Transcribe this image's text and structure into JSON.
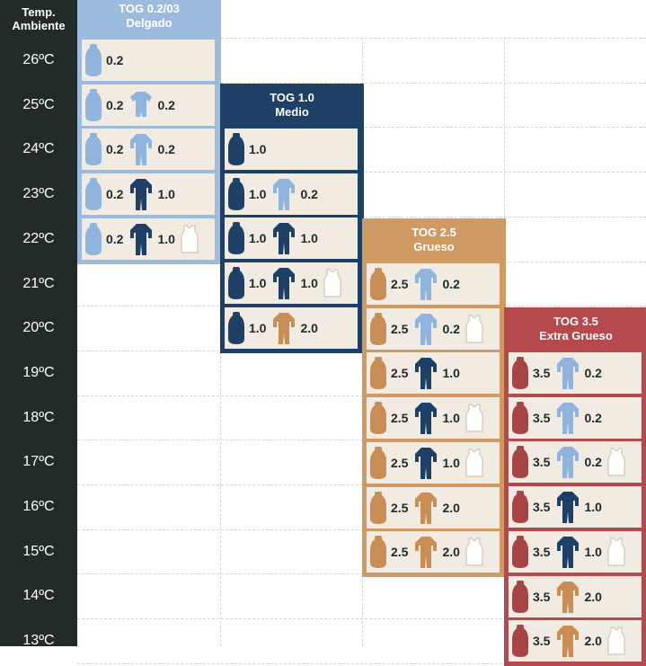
{
  "header": {
    "temp_line1": "Temp.",
    "temp_line2": "Ambiente"
  },
  "temperatures": [
    "26ºC",
    "25ºC",
    "24ºC",
    "23ºC",
    "22ºC",
    "21ºC",
    "20ºC",
    "19ºC",
    "18ºC",
    "17ºC",
    "16ºC",
    "15ºC",
    "14ºC",
    "13ºC"
  ],
  "colors": {
    "sidebar": "#232b2a",
    "light_blue": "#8fb4dd",
    "navy": "#1e3f66",
    "tan": "#c98e56",
    "red": "#a64446",
    "vest": "#ffffff",
    "cell_bg": "#f1ebe1"
  },
  "categories": [
    {
      "title": "TOG 0.2/03",
      "subtitle": "Delgado",
      "color": "#9dbcdd",
      "rows": [
        {
          "temp": "26ºC",
          "items": [
            {
              "icon": "sleeping-bag-icon",
              "color": "light_blue",
              "label": "0.2"
            }
          ]
        },
        {
          "temp": "25ºC",
          "items": [
            {
              "icon": "sleeping-bag-icon",
              "color": "light_blue",
              "label": "0.2"
            },
            {
              "icon": "romper-short-icon",
              "color": "light_blue",
              "label": "0.2"
            }
          ]
        },
        {
          "temp": "24ºC",
          "items": [
            {
              "icon": "sleeping-bag-icon",
              "color": "light_blue",
              "label": "0.2"
            },
            {
              "icon": "onesie-icon",
              "color": "light_blue",
              "label": "0.2"
            }
          ]
        },
        {
          "temp": "23ºC",
          "items": [
            {
              "icon": "sleeping-bag-icon",
              "color": "light_blue",
              "label": "0.2"
            },
            {
              "icon": "onesie-icon",
              "color": "navy",
              "label": "1.0"
            }
          ]
        },
        {
          "temp": "22ºC",
          "items": [
            {
              "icon": "sleeping-bag-icon",
              "color": "light_blue",
              "label": "0.2"
            },
            {
              "icon": "onesie-icon",
              "color": "navy",
              "label": "1.0"
            },
            {
              "icon": "vest-icon",
              "color": "vest",
              "label": ""
            }
          ]
        }
      ]
    },
    {
      "title": "TOG 1.0",
      "subtitle": "Medio",
      "color": "#1e3f66",
      "rows": [
        {
          "temp": "24ºC",
          "items": [
            {
              "icon": "sleeping-bag-icon",
              "color": "navy",
              "label": "1.0"
            }
          ]
        },
        {
          "temp": "23ºC",
          "items": [
            {
              "icon": "sleeping-bag-icon",
              "color": "navy",
              "label": "1.0"
            },
            {
              "icon": "onesie-icon",
              "color": "light_blue",
              "label": "0.2"
            }
          ]
        },
        {
          "temp": "22ºC",
          "items": [
            {
              "icon": "sleeping-bag-icon",
              "color": "navy",
              "label": "1.0"
            },
            {
              "icon": "onesie-icon",
              "color": "navy",
              "label": "1.0"
            }
          ]
        },
        {
          "temp": "21ºC",
          "items": [
            {
              "icon": "sleeping-bag-icon",
              "color": "navy",
              "label": "1.0"
            },
            {
              "icon": "onesie-icon",
              "color": "navy",
              "label": "1.0"
            },
            {
              "icon": "vest-icon",
              "color": "vest",
              "label": ""
            }
          ]
        },
        {
          "temp": "20ºC",
          "items": [
            {
              "icon": "sleeping-bag-icon",
              "color": "navy",
              "label": "1.0"
            },
            {
              "icon": "onesie-icon",
              "color": "tan",
              "label": "2.0"
            }
          ]
        }
      ]
    },
    {
      "title": "TOG 2.5",
      "subtitle": "Grueso",
      "color": "#d09a63",
      "rows": [
        {
          "temp": "21ºC",
          "items": [
            {
              "icon": "sleeping-bag-icon",
              "color": "tan",
              "label": "2.5"
            },
            {
              "icon": "onesie-icon",
              "color": "light_blue",
              "label": "0.2"
            }
          ]
        },
        {
          "temp": "20ºC",
          "items": [
            {
              "icon": "sleeping-bag-icon",
              "color": "tan",
              "label": "2.5"
            },
            {
              "icon": "onesie-icon",
              "color": "light_blue",
              "label": "0.2"
            },
            {
              "icon": "vest-icon",
              "color": "vest",
              "label": ""
            }
          ]
        },
        {
          "temp": "19ºC",
          "items": [
            {
              "icon": "sleeping-bag-icon",
              "color": "tan",
              "label": "2.5"
            },
            {
              "icon": "onesie-icon",
              "color": "navy",
              "label": "1.0"
            }
          ]
        },
        {
          "temp": "18ºC",
          "items": [
            {
              "icon": "sleeping-bag-icon",
              "color": "tan",
              "label": "2.5"
            },
            {
              "icon": "onesie-icon",
              "color": "navy",
              "label": "1.0"
            },
            {
              "icon": "vest-icon",
              "color": "vest",
              "label": ""
            }
          ]
        },
        {
          "temp": "17ºC",
          "items": [
            {
              "icon": "sleeping-bag-icon",
              "color": "tan",
              "label": "2.5"
            },
            {
              "icon": "onesie-icon",
              "color": "navy",
              "label": "1.0"
            },
            {
              "icon": "vest-icon",
              "color": "vest",
              "label": ""
            }
          ]
        },
        {
          "temp": "16ºC",
          "items": [
            {
              "icon": "sleeping-bag-icon",
              "color": "tan",
              "label": "2.5"
            },
            {
              "icon": "onesie-icon",
              "color": "tan",
              "label": "2.0"
            }
          ]
        },
        {
          "temp": "15ºC",
          "items": [
            {
              "icon": "sleeping-bag-icon",
              "color": "tan",
              "label": "2.5"
            },
            {
              "icon": "onesie-icon",
              "color": "tan",
              "label": "2.0"
            },
            {
              "icon": "vest-icon",
              "color": "vest",
              "label": ""
            }
          ]
        }
      ]
    },
    {
      "title": "TOG 3.5",
      "subtitle": "Extra Grueso",
      "color": "#b6494d",
      "rows": [
        {
          "temp": "19ºC",
          "items": [
            {
              "icon": "sleeping-bag-icon",
              "color": "red",
              "label": "3.5"
            },
            {
              "icon": "onesie-icon",
              "color": "light_blue",
              "label": "0.2"
            }
          ]
        },
        {
          "temp": "18ºC",
          "items": [
            {
              "icon": "sleeping-bag-icon",
              "color": "red",
              "label": "3.5"
            },
            {
              "icon": "onesie-icon",
              "color": "light_blue",
              "label": "0.2"
            }
          ]
        },
        {
          "temp": "17ºC",
          "items": [
            {
              "icon": "sleeping-bag-icon",
              "color": "red",
              "label": "3.5"
            },
            {
              "icon": "onesie-icon",
              "color": "light_blue",
              "label": "0.2"
            },
            {
              "icon": "vest-icon",
              "color": "vest",
              "label": ""
            }
          ]
        },
        {
          "temp": "16ºC",
          "items": [
            {
              "icon": "sleeping-bag-icon",
              "color": "red",
              "label": "3.5"
            },
            {
              "icon": "onesie-icon",
              "color": "navy",
              "label": "1.0"
            }
          ]
        },
        {
          "temp": "15ºC",
          "items": [
            {
              "icon": "sleeping-bag-icon",
              "color": "red",
              "label": "3.5"
            },
            {
              "icon": "onesie-icon",
              "color": "navy",
              "label": "1.0"
            },
            {
              "icon": "vest-icon",
              "color": "vest",
              "label": ""
            }
          ]
        },
        {
          "temp": "14ºC",
          "items": [
            {
              "icon": "sleeping-bag-icon",
              "color": "red",
              "label": "3.5"
            },
            {
              "icon": "onesie-icon",
              "color": "tan",
              "label": "2.0"
            }
          ]
        },
        {
          "temp": "13ºC",
          "items": [
            {
              "icon": "sleeping-bag-icon",
              "color": "red",
              "label": "3.5"
            },
            {
              "icon": "onesie-icon",
              "color": "tan",
              "label": "2.0"
            },
            {
              "icon": "vest-icon",
              "color": "vest",
              "label": ""
            }
          ]
        }
      ]
    }
  ]
}
